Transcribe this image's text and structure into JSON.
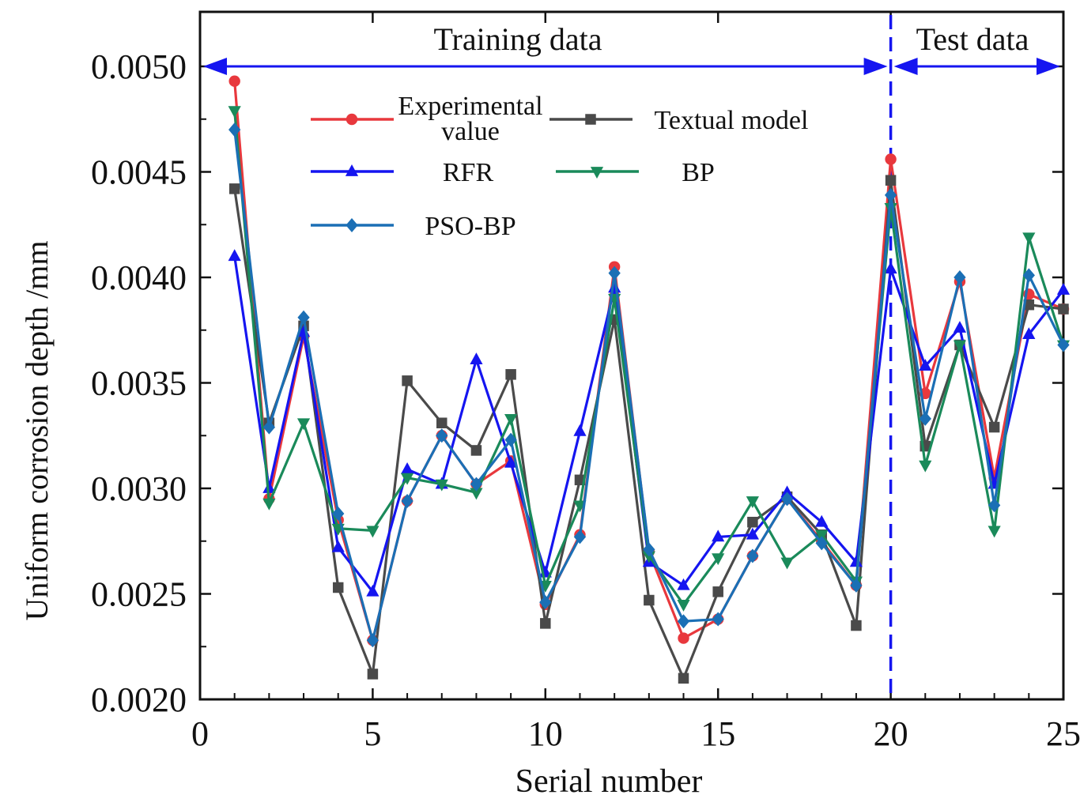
{
  "chart_data": {
    "type": "line",
    "xlabel": "Serial number",
    "ylabel": "Uniform corrosion depth  /mm",
    "xlim": [
      0,
      25
    ],
    "ylim": [
      0.002,
      0.0052
    ],
    "x_ticks": [
      "0",
      "5",
      "10",
      "15",
      "20",
      "25"
    ],
    "y_ticks": [
      "0.0020",
      "0.0025",
      "0.0030",
      "0.0035",
      "0.0040",
      "0.0045",
      "0.0050"
    ],
    "x": [
      1,
      2,
      3,
      4,
      5,
      6,
      7,
      8,
      9,
      10,
      11,
      12,
      13,
      14,
      15,
      16,
      17,
      18,
      19,
      20,
      21,
      22,
      23,
      24,
      25
    ],
    "split_x": 20,
    "annotations": {
      "training": "Training data",
      "test": "Test data",
      "arrow_y": 0.005
    },
    "series": [
      {
        "name": "Experimental value",
        "legend_line1": "Experimental",
        "legend_line2": "value",
        "color": "#e8383d",
        "marker": "circle",
        "values": [
          0.00493,
          0.00295,
          0.00372,
          0.00285,
          0.00228,
          0.00294,
          0.00325,
          0.00302,
          0.00313,
          0.00245,
          0.00278,
          0.00405,
          0.0027,
          0.00229,
          0.00238,
          0.00268,
          0.00295,
          0.00275,
          0.00254,
          0.00456,
          0.00345,
          0.00398,
          0.00305,
          0.00392,
          0.00385
        ]
      },
      {
        "name": "Textual model",
        "color": "#4a4a4a",
        "marker": "square",
        "values": [
          0.00442,
          0.00331,
          0.00377,
          0.00253,
          0.00212,
          0.00351,
          0.00331,
          0.00318,
          0.00354,
          0.00236,
          0.00304,
          0.0038,
          0.00247,
          0.0021,
          0.00251,
          0.00284,
          0.00296,
          0.00278,
          0.00235,
          0.00446,
          0.0032,
          0.00368,
          0.00329,
          0.00387,
          0.00385
        ]
      },
      {
        "name": "RFR",
        "color": "#1515f0",
        "marker": "triangle-up",
        "values": [
          0.0041,
          0.003,
          0.00374,
          0.00272,
          0.00251,
          0.00309,
          0.00302,
          0.00361,
          0.00312,
          0.0026,
          0.00327,
          0.00395,
          0.00265,
          0.00254,
          0.00277,
          0.00278,
          0.00298,
          0.00284,
          0.00265,
          0.00404,
          0.00358,
          0.00376,
          0.00302,
          0.00373,
          0.00394
        ]
      },
      {
        "name": "BP",
        "color": "#1a8a5a",
        "marker": "triangle-down",
        "values": [
          0.00479,
          0.00293,
          0.00331,
          0.00281,
          0.0028,
          0.00305,
          0.00302,
          0.00298,
          0.00333,
          0.00254,
          0.00292,
          0.0039,
          0.00268,
          0.00245,
          0.00267,
          0.00294,
          0.00265,
          0.00278,
          0.00256,
          0.00433,
          0.00311,
          0.00368,
          0.0028,
          0.00419,
          0.00368
        ]
      },
      {
        "name": "PSO-BP",
        "color": "#1b6fb5",
        "marker": "diamond",
        "values": [
          0.0047,
          0.00329,
          0.00381,
          0.00288,
          0.00228,
          0.00294,
          0.00325,
          0.00302,
          0.00323,
          0.00246,
          0.00277,
          0.00402,
          0.00271,
          0.00237,
          0.00238,
          0.00268,
          0.00295,
          0.00274,
          0.00254,
          0.00439,
          0.00333,
          0.004,
          0.00292,
          0.00401,
          0.00368
        ]
      }
    ]
  }
}
